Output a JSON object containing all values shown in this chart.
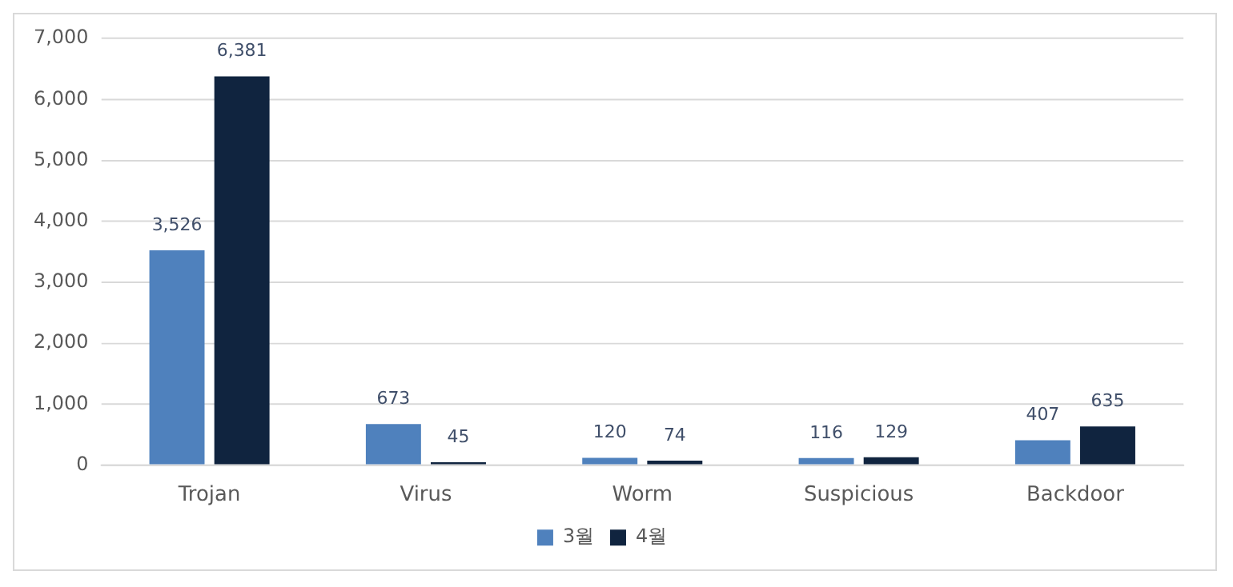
{
  "chart_data": {
    "type": "bar",
    "categories": [
      "Trojan",
      "Virus",
      "Worm",
      "Suspicious",
      "Backdoor"
    ],
    "series": [
      {
        "name": "3월",
        "color": "#4f81bd",
        "values": [
          3526,
          673,
          120,
          116,
          407
        ],
        "value_labels": [
          "3,526",
          "673",
          "120",
          "116",
          "407"
        ]
      },
      {
        "name": "4월",
        "color": "#10243f",
        "values": [
          6381,
          45,
          74,
          129,
          635
        ],
        "value_labels": [
          "6,381",
          "45",
          "74",
          "129",
          "635"
        ]
      }
    ],
    "ylim": [
      0,
      7000
    ],
    "yticks": [
      0,
      {
        "value": 1000,
        "label": "1,000"
      },
      {
        "value": 2000,
        "label": "2,000"
      },
      {
        "value": 3000,
        "label": "3,000"
      },
      {
        "value": 4000,
        "label": "4,000"
      },
      {
        "value": 5000,
        "label": "5,000"
      },
      {
        "value": 6000,
        "label": "6,000"
      },
      {
        "value": 7000,
        "label": "7,000"
      }
    ],
    "grid": "y",
    "legend": "bottom"
  }
}
